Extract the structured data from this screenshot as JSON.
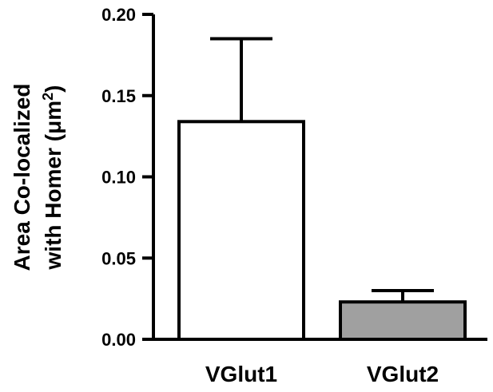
{
  "chart_data": {
    "type": "bar",
    "title": "",
    "xlabel": "",
    "ylabel_lines": [
      "Area Co-localized",
      "with Homer (μm²)"
    ],
    "ylabel_parts": {
      "line1": "Area Co-localized",
      "line2_prefix": "with Homer (",
      "line2_unit": "μm",
      "line2_superscript": "2",
      "line2_suffix": ")"
    },
    "categories": [
      "VGlut1",
      "VGlut2"
    ],
    "values": [
      0.134,
      0.023
    ],
    "error_upper": [
      0.185,
      0.03
    ],
    "bar_colors": [
      "#ffffff",
      "#a0a0a0"
    ],
    "ylim": [
      0,
      0.2
    ],
    "yticks": [
      0.0,
      0.05,
      0.1,
      0.15,
      0.2
    ],
    "ytick_labels": [
      "0.00",
      "0.05",
      "0.10",
      "0.15",
      "0.20"
    ],
    "grid": false,
    "legend": "none"
  }
}
